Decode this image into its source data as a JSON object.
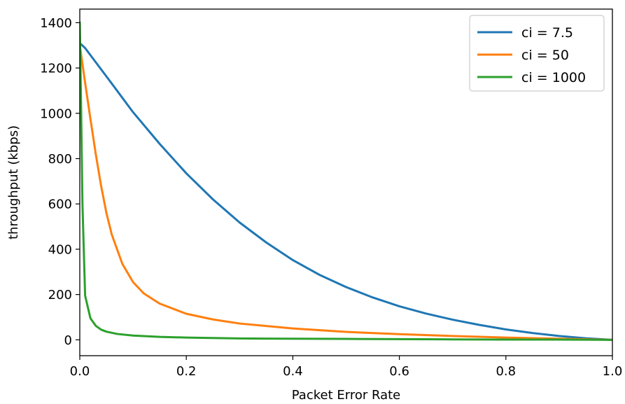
{
  "chart_data": {
    "type": "line",
    "xlabel": "Packet Error Rate",
    "ylabel": "throughput (kbps)",
    "xlim": [
      0.0,
      1.0
    ],
    "ylim": [
      -70,
      1460
    ],
    "x_ticks": [
      0.0,
      0.2,
      0.4,
      0.6,
      0.8,
      1.0
    ],
    "x_tick_labels": [
      "0.0",
      "0.2",
      "0.4",
      "0.6",
      "0.8",
      "1.0"
    ],
    "y_ticks": [
      0,
      200,
      400,
      600,
      800,
      1000,
      1200,
      1400
    ],
    "y_tick_labels": [
      "0",
      "200",
      "400",
      "600",
      "800",
      "1000",
      "1200",
      "1400"
    ],
    "grid": false,
    "legend_position": "top-right",
    "series": [
      {
        "name": "ci = 7.5",
        "color": "#1f77b4",
        "x": [
          0.0,
          0.01,
          0.05,
          0.1,
          0.15,
          0.2,
          0.25,
          0.3,
          0.35,
          0.4,
          0.45,
          0.5,
          0.55,
          0.6,
          0.65,
          0.7,
          0.75,
          0.8,
          0.85,
          0.9,
          0.95,
          1.0
        ],
        "y": [
          1310,
          1288,
          1163,
          1005,
          865,
          735,
          620,
          518,
          430,
          352,
          287,
          233,
          187,
          148,
          116,
          89,
          66,
          46,
          30,
          17,
          7,
          0
        ]
      },
      {
        "name": "ci = 50",
        "color": "#ff7f0e",
        "x": [
          0.0,
          0.01,
          0.02,
          0.03,
          0.04,
          0.05,
          0.06,
          0.08,
          0.1,
          0.12,
          0.15,
          0.2,
          0.25,
          0.3,
          0.4,
          0.5,
          0.6,
          0.7,
          0.8,
          0.9,
          1.0
        ],
        "y": [
          1300,
          1135,
          975,
          820,
          680,
          560,
          465,
          335,
          255,
          205,
          160,
          115,
          90,
          72,
          50,
          35,
          25,
          17,
          10,
          5,
          0
        ]
      },
      {
        "name": "ci = 1000",
        "color": "#2ca02c",
        "x": [
          0.0,
          0.002,
          0.005,
          0.01,
          0.02,
          0.03,
          0.04,
          0.05,
          0.07,
          0.1,
          0.15,
          0.2,
          0.3,
          0.4,
          0.5,
          0.6,
          0.7,
          0.8,
          0.9,
          1.0
        ],
        "y": [
          1400,
          1100,
          600,
          195,
          95,
          62,
          45,
          36,
          26,
          19,
          13,
          10,
          6,
          5,
          4,
          3,
          2,
          1,
          1,
          0
        ]
      }
    ]
  }
}
